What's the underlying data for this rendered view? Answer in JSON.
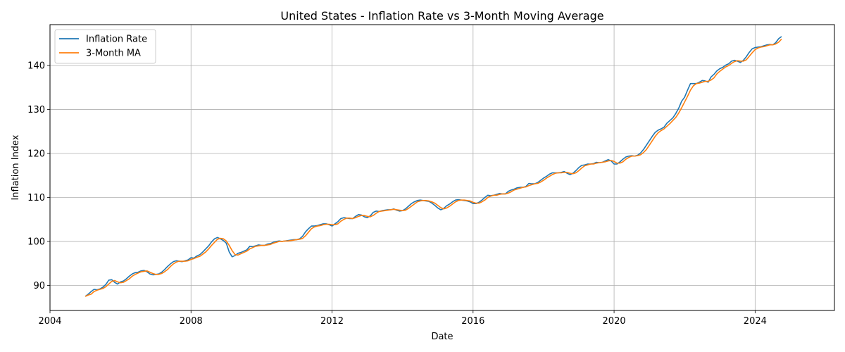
{
  "chart_data": {
    "type": "line",
    "title": "United States - Inflation Rate vs 3-Month Moving Average",
    "xlabel": "Date",
    "ylabel": "Inflation Index",
    "xlim": [
      2004.0,
      2026.25
    ],
    "ylim": [
      84.3,
      149.3
    ],
    "xticks": [
      2004,
      2008,
      2012,
      2016,
      2020,
      2024
    ],
    "yticks": [
      90,
      100,
      110,
      120,
      130,
      140
    ],
    "grid": true,
    "legend_position": "top-left",
    "x_start": 2005.0,
    "x_step": 0.0833333,
    "series": [
      {
        "name": "Inflation Rate",
        "color": "#1f77b4",
        "values": [
          87.5,
          88.0,
          88.6,
          89.1,
          89.0,
          89.2,
          89.6,
          90.2,
          91.2,
          91.3,
          90.7,
          90.3,
          90.8,
          91.0,
          91.5,
          92.1,
          92.6,
          92.9,
          93.0,
          93.3,
          93.4,
          93.1,
          92.6,
          92.4,
          92.5,
          92.6,
          93.0,
          93.6,
          94.3,
          94.9,
          95.4,
          95.6,
          95.5,
          95.4,
          95.6,
          95.8,
          96.3,
          96.2,
          96.7,
          97.0,
          97.6,
          98.3,
          99.0,
          99.9,
          100.6,
          100.9,
          100.6,
          100.2,
          99.6,
          97.6,
          96.5,
          96.8,
          97.3,
          97.5,
          97.8,
          98.1,
          98.9,
          98.8,
          99.0,
          99.2,
          99.1,
          99.1,
          99.4,
          99.5,
          99.8,
          100.0,
          100.1,
          100.0,
          100.1,
          100.2,
          100.3,
          100.4,
          100.4,
          100.6,
          101.2,
          102.2,
          102.9,
          103.5,
          103.5,
          103.6,
          103.8,
          104.0,
          104.0,
          103.8,
          103.5,
          104.0,
          104.5,
          105.2,
          105.4,
          105.3,
          105.2,
          105.2,
          105.7,
          106.1,
          106.0,
          105.6,
          105.4,
          105.8,
          106.6,
          106.9,
          106.8,
          107.0,
          107.1,
          107.2,
          107.2,
          107.4,
          107.1,
          106.9,
          107.0,
          107.4,
          108.0,
          108.6,
          109.0,
          109.3,
          109.4,
          109.3,
          109.2,
          109.1,
          108.7,
          108.2,
          107.6,
          107.2,
          107.5,
          108.1,
          108.5,
          109.0,
          109.4,
          109.5,
          109.4,
          109.3,
          109.2,
          109.0,
          108.6,
          108.6,
          108.9,
          109.4,
          110.0,
          110.5,
          110.4,
          110.5,
          110.7,
          110.9,
          110.8,
          110.8,
          111.4,
          111.7,
          111.9,
          112.2,
          112.3,
          112.3,
          112.5,
          113.2,
          113.1,
          113.1,
          113.4,
          113.9,
          114.4,
          114.8,
          115.3,
          115.6,
          115.6,
          115.6,
          115.7,
          115.9,
          115.5,
          115.2,
          115.5,
          116.1,
          116.8,
          117.3,
          117.4,
          117.6,
          117.6,
          117.7,
          118.0,
          117.9,
          118.0,
          118.3,
          118.6,
          118.3,
          117.6,
          117.6,
          118.1,
          118.7,
          119.2,
          119.4,
          119.5,
          119.4,
          119.6,
          120.1,
          120.9,
          121.9,
          122.9,
          123.9,
          124.8,
          125.3,
          125.6,
          126.0,
          126.9,
          127.5,
          128.1,
          129.1,
          130.3,
          131.9,
          132.8,
          134.4,
          135.9,
          135.9,
          135.9,
          136.2,
          136.6,
          136.5,
          136.2,
          137.4,
          138.0,
          138.8,
          139.3,
          139.6,
          140.1,
          140.4,
          141.0,
          141.2,
          141.0,
          140.7,
          141.2,
          142.0,
          143.0,
          143.8,
          144.1,
          144.2,
          144.3,
          144.5,
          144.7,
          144.8,
          144.7,
          145.2,
          146.1,
          146.6
        ]
      },
      {
        "name": "3-Month MA",
        "color": "#ff7f0e",
        "values": [
          87.5,
          87.8,
          88.0,
          88.6,
          88.9,
          89.1,
          89.3,
          89.7,
          90.3,
          90.9,
          91.1,
          90.8,
          90.6,
          90.7,
          91.1,
          91.5,
          92.1,
          92.5,
          92.8,
          93.1,
          93.2,
          93.3,
          93.0,
          92.7,
          92.5,
          92.5,
          92.7,
          93.1,
          93.6,
          94.3,
          94.9,
          95.3,
          95.5,
          95.5,
          95.5,
          95.6,
          95.9,
          96.1,
          96.4,
          96.6,
          97.1,
          97.6,
          98.3,
          99.1,
          99.8,
          100.5,
          100.7,
          100.6,
          100.1,
          99.1,
          97.9,
          97.0,
          96.9,
          97.2,
          97.5,
          97.8,
          98.3,
          98.6,
          98.9,
          99.0,
          99.1,
          99.1,
          99.2,
          99.3,
          99.6,
          99.8,
          100.0,
          100.0,
          100.1,
          100.1,
          100.2,
          100.3,
          100.4,
          100.5,
          100.7,
          101.3,
          102.1,
          102.9,
          103.3,
          103.5,
          103.6,
          103.8,
          103.9,
          103.9,
          103.8,
          103.8,
          104.0,
          104.6,
          105.0,
          105.3,
          105.3,
          105.2,
          105.4,
          105.7,
          105.9,
          105.9,
          105.7,
          105.6,
          105.9,
          106.4,
          106.8,
          106.9,
          107.0,
          107.1,
          107.2,
          107.3,
          107.2,
          107.1,
          107.0,
          107.1,
          107.5,
          108.0,
          108.5,
          109.0,
          109.2,
          109.3,
          109.3,
          109.2,
          109.0,
          108.7,
          108.2,
          107.7,
          107.4,
          107.6,
          108.0,
          108.5,
          109.0,
          109.3,
          109.4,
          109.4,
          109.3,
          109.2,
          108.9,
          108.7,
          108.7,
          109.0,
          109.4,
          110.0,
          110.3,
          110.5,
          110.5,
          110.7,
          110.8,
          110.8,
          111.0,
          111.3,
          111.7,
          111.9,
          112.1,
          112.3,
          112.4,
          112.7,
          112.9,
          113.1,
          113.2,
          113.5,
          113.9,
          114.4,
          114.8,
          115.2,
          115.5,
          115.6,
          115.6,
          115.7,
          115.7,
          115.5,
          115.4,
          115.6,
          116.1,
          116.7,
          117.2,
          117.4,
          117.6,
          117.6,
          117.8,
          117.9,
          118.0,
          118.1,
          118.3,
          118.4,
          118.2,
          117.8,
          117.8,
          118.1,
          118.7,
          119.1,
          119.4,
          119.4,
          119.5,
          119.7,
          120.2,
          120.9,
          121.9,
          122.9,
          123.9,
          124.7,
          125.2,
          125.6,
          126.2,
          126.8,
          127.5,
          128.2,
          129.2,
          130.4,
          131.7,
          133.0,
          134.4,
          135.4,
          135.9,
          136.0,
          136.2,
          136.4,
          136.4,
          136.7,
          137.2,
          138.1,
          138.7,
          139.2,
          139.7,
          140.0,
          140.5,
          140.9,
          141.1,
          141.0,
          141.0,
          141.3,
          142.1,
          142.9,
          143.6,
          144.0,
          144.2,
          144.3,
          144.5,
          144.7,
          144.7,
          144.9,
          145.3,
          146.0
        ]
      }
    ]
  }
}
